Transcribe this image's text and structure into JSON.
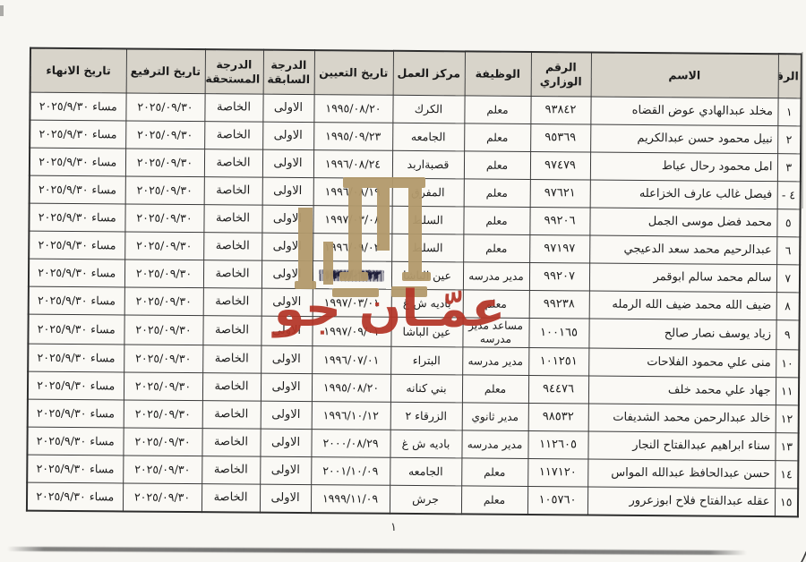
{
  "document": {
    "page_number": "١",
    "watermark": {
      "text": "عمّـان جو",
      "color": "#b43527",
      "ruins_color": "#b39a6c"
    },
    "table": {
      "headers": [
        "الرقم",
        "الاسم",
        "الرقم الوزاري",
        "الوظيفة",
        "مركز العمل",
        "تاريخ التعيين",
        "الدرجة السابقة",
        "الدرجة المستحقة",
        "تاريخ الترفيع",
        "تاريخ الانهاء"
      ],
      "rows": [
        [
          "١",
          "مخلد عبدالهادي عوض القضاه",
          "٩٣٨٤٢",
          "معلم",
          "الكرك",
          "١٩٩٥/٠٨/٢٠",
          "الاولى",
          "الخاصة",
          "٢٠٢٥/٠٩/٣٠",
          "مساء ٢٠٢٥/٩/٣٠"
        ],
        [
          "٢",
          "نبيل محمود حسن عبدالكريم",
          "٩٥٣٦٩",
          "معلم",
          "الجامعه",
          "١٩٩٥/٠٩/٢٣",
          "الاولى",
          "الخاصة",
          "٢٠٢٥/٠٩/٣٠",
          "مساء ٢٠٢٥/٩/٣٠"
        ],
        [
          "٣",
          "امل محمود رحال عياط",
          "٩٧٤٧٩",
          "معلم",
          "قصبةاربد",
          "١٩٩٦/٠٨/٢٤",
          "الاولى",
          "الخاصة",
          "٢٠٢٥/٠٩/٣٠",
          "مساء ٢٠٢٥/٩/٣٠"
        ],
        [
          "٤ -",
          "فيصل غالب عارف الخزاعله",
          "٩٧٦٢١",
          "معلم",
          "المفرق",
          "١٩٩٦/٠٨/١٩",
          "الاولى",
          "الخاصة",
          "٢٠٢٥/٠٩/٣٠",
          "مساء ٢٠٢٥/٩/٣٠"
        ],
        [
          "٥",
          "محمد فضل موسى الجمل",
          "٩٩٢٠٦",
          "معلم",
          "السلط",
          "١٩٩٧/٠٣/٠٨",
          "الاولى",
          "الخاصة",
          "٢٠٢٥/٠٩/٣٠",
          "مساء ٢٠٢٥/٩/٣٠"
        ],
        [
          "٦",
          "عبدالرحيم محمد سعد الدعيجي",
          "٩٧١٩٧",
          "معلم",
          "السلط",
          "١٩٩٦/٠٩/٠٢",
          "الاولى",
          "الخاصة",
          "٢٠٢٥/٠٩/٣٠",
          "مساء ٢٠٢٥/٩/٣٠"
        ],
        [
          "٧",
          "سالم محمد سالم ابوقمر",
          "٩٩٢٠٧",
          "مدير مدرسه",
          "عين الباشا",
          "١٩٩٧/٠٦/٢٣",
          "الاولى",
          "الخاصة",
          "٢٠٢٥/٠٩/٣٠",
          "مساء ٢٠٢٥/٩/٣٠"
        ],
        [
          "٨",
          "ضيف الله محمد ضيف الله الرمله",
          "٩٩٢٣٨",
          "معلم",
          "باديه ش غ",
          "١٩٩٧/٠٣/٠١",
          "الاولى",
          "الخاصة",
          "٢٠٢٥/٠٩/٣٠",
          "مساء ٢٠٢٥/٩/٣٠"
        ],
        [
          "٩",
          "زياد يوسف نصار صالح",
          "١٠٠١٦٥",
          "مساعد مدير مدرسه",
          "عين الباشا",
          "١٩٩٧/٠٩/٠١",
          "الاولى",
          "الخاصة",
          "٢٠٢٥/٠٩/٣٠",
          "مساء ٢٠٢٥/٩/٣٠"
        ],
        [
          "١٠",
          "منى علي محمود الفلاحات",
          "١٠١٢٥١",
          "مدير مدرسه",
          "البتراء",
          "١٩٩٦/٠٧/٠١",
          "الاولى",
          "الخاصة",
          "٢٠٢٥/٠٩/٣٠",
          "مساء ٢٠٢٥/٩/٣٠"
        ],
        [
          "١١",
          "جهاد علي محمد خلف",
          "٩٤٤٧٦",
          "معلم",
          "بني كنانه",
          "١٩٩٥/٠٨/٢٠",
          "الاولى",
          "الخاصة",
          "٢٠٢٥/٠٩/٣٠",
          "مساء ٢٠٢٥/٩/٣٠"
        ],
        [
          "١٢",
          "خالد عبدالرحمن محمد الشديفات",
          "٩٨٥٣٢",
          "مدير ثانوي",
          "الزرقاء ٢",
          "١٩٩٦/١٠/١٢",
          "الاولى",
          "الخاصة",
          "٢٠٢٥/٠٩/٣٠",
          "مساء ٢٠٢٥/٩/٣٠"
        ],
        [
          "١٣",
          "سناء ابراهيم عبدالفتاح النجار",
          "١١٢٦٠٥",
          "مدير مدرسه",
          "باديه ش غ",
          "٢٠٠٠/٠٨/٢٩",
          "الاولى",
          "الخاصة",
          "٢٠٢٥/٠٩/٣٠",
          "مساء ٢٠٢٥/٩/٣٠"
        ],
        [
          "١٤",
          "حسن عبدالحافظ عبدالله المواس",
          "١١٧١٢٠",
          "معلم",
          "الجامعه",
          "٢٠٠١/١٠/٠٩",
          "الاولى",
          "الخاصة",
          "٢٠٢٥/٠٩/٣٠",
          "مساء ٢٠٢٥/٩/٣٠"
        ],
        [
          "١٥",
          "عقله عبدالفتاح فلاح ابوزعرور",
          "١٠٥٧٦٠",
          "معلم",
          "جرش",
          "١٩٩٩/١١/٠٩",
          "الاولى",
          "الخاصة",
          "٢٠٢٥/٠٩/٣٠",
          "مساء ٢٠٢٥/٩/٣٠"
        ]
      ],
      "scribbled_cell": {
        "row": 6,
        "col": 5
      }
    }
  }
}
